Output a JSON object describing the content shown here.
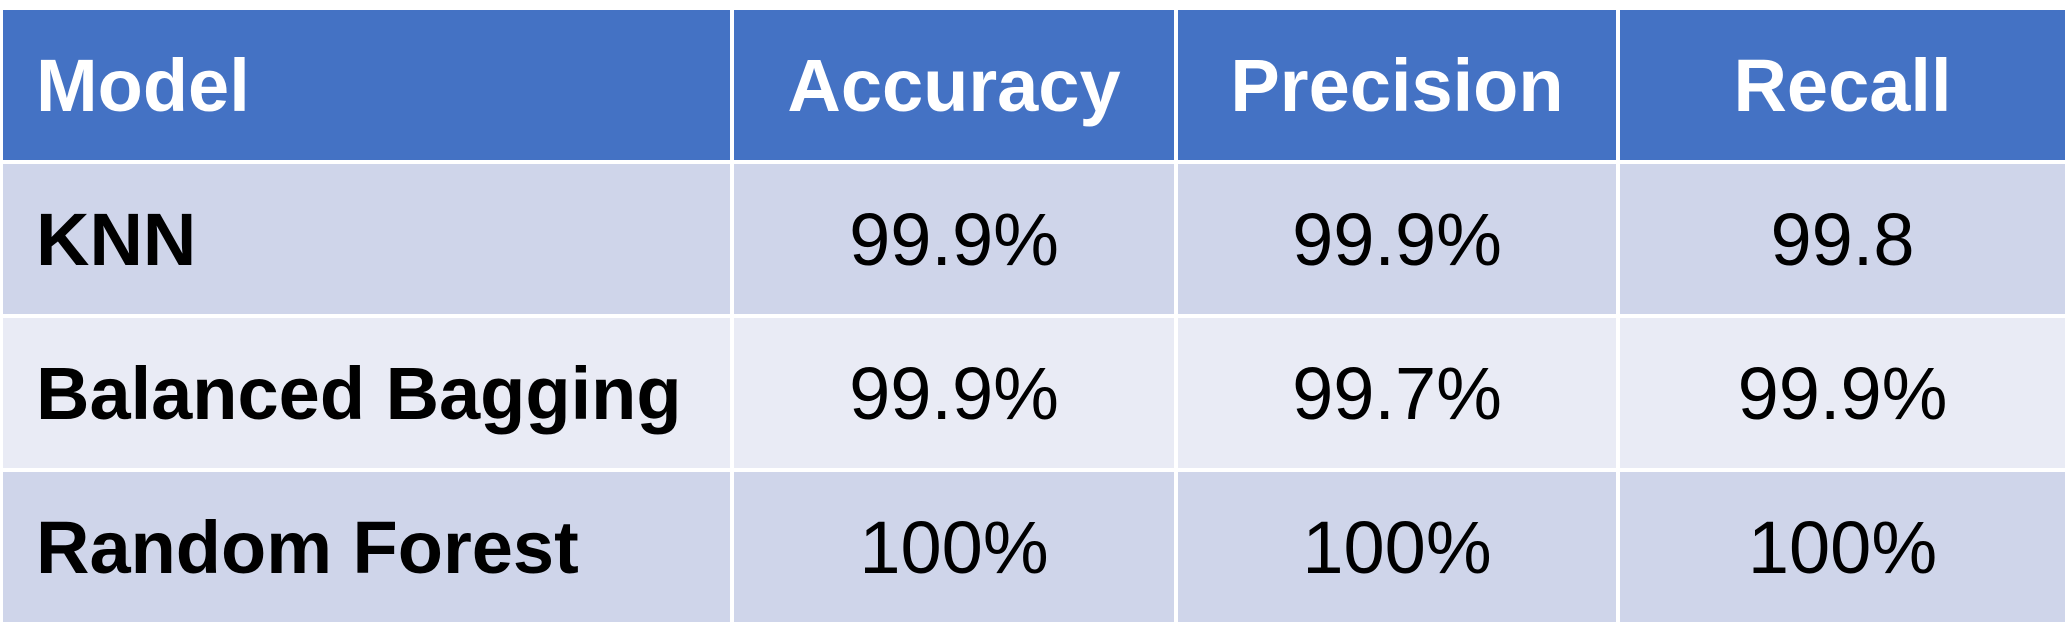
{
  "table": {
    "headers": [
      "Model",
      "Accuracy",
      "Precision",
      "Recall"
    ],
    "rows": [
      {
        "model": "KNN",
        "accuracy": "99.9%",
        "precision": "99.9%",
        "recall": "99.8"
      },
      {
        "model": "Balanced Bagging",
        "accuracy": "99.9%",
        "precision": "99.7%",
        "recall": "99.9%"
      },
      {
        "model": "Random Forest",
        "accuracy": "100%",
        "precision": "100%",
        "recall": "100%"
      }
    ]
  },
  "colors": {
    "header_bg": "#4472c4",
    "header_text": "#ffffff",
    "row_odd_bg": "#cfd5ea",
    "row_even_bg": "#e9ebf5",
    "body_text": "#000000"
  }
}
